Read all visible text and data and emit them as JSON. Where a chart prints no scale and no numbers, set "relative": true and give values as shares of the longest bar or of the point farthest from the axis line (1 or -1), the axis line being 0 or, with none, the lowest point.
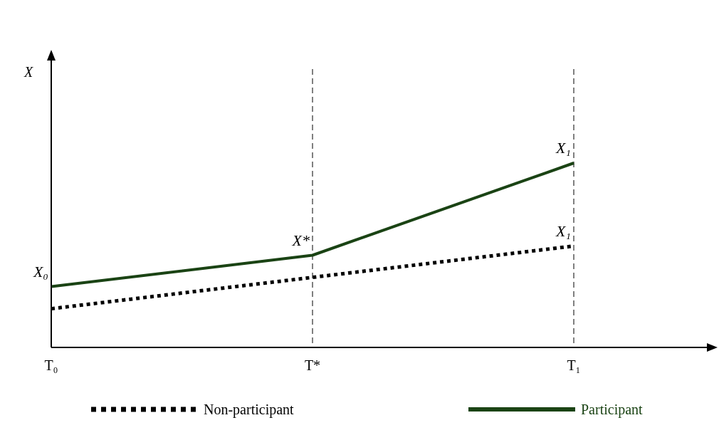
{
  "chart_data": {
    "type": "line",
    "relative": true,
    "categories": [
      "T₀",
      "T*",
      "T₁"
    ],
    "series": [
      {
        "name": "Non-participant",
        "color": "#000000",
        "line_style": "dotted",
        "values": [
          0.21,
          0.38,
          0.55
        ]
      },
      {
        "name": "Participant",
        "color": "#1a4314",
        "line_style": "solid",
        "values": [
          0.33,
          0.5,
          1
        ]
      }
    ],
    "annotations": [
      "X",
      {
        "text": "X₀",
        "x": "T₀",
        "y": 0.33
      },
      {
        "text": "X*",
        "x": "T*",
        "y": 0.5
      },
      {
        "text": "X₁",
        "x": "T₁",
        "y": 1
      },
      {
        "text": "X₁",
        "x": "T₁",
        "y": 0.55
      }
    ],
    "ref_lines": [
      {
        "axis": "x",
        "value": "T*",
        "color": "#000000",
        "line_style": "dashed"
      },
      {
        "axis": "x",
        "value": "T₁",
        "color": "#000000",
        "line_style": "dashed"
      }
    ],
    "legend": "bottom",
    "grid": false
  }
}
